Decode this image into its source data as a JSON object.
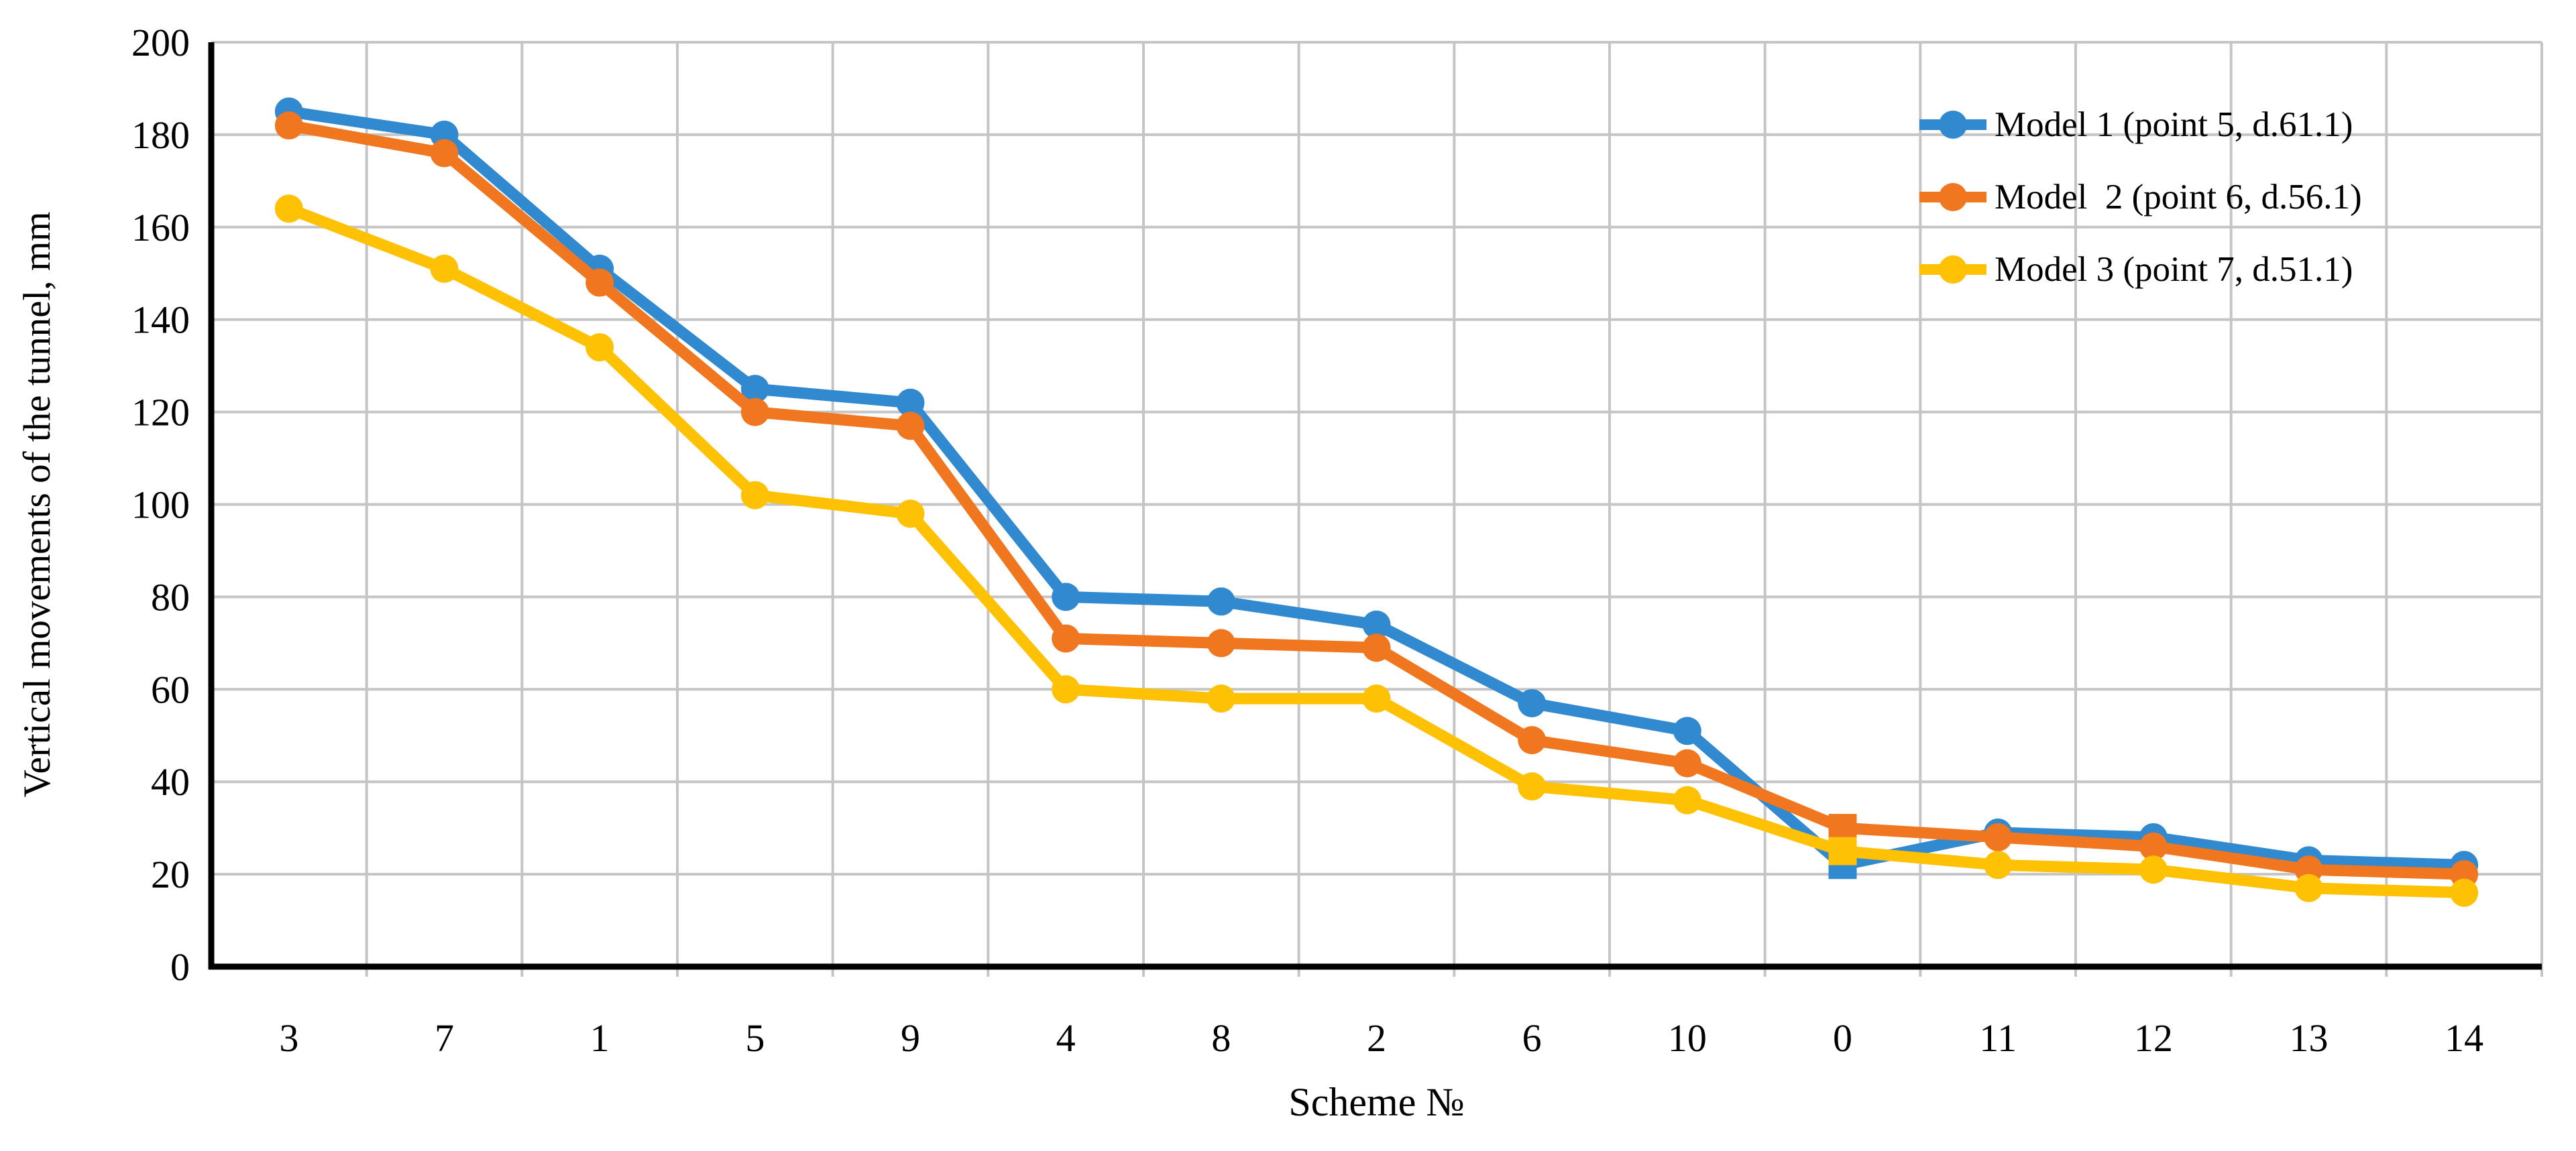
{
  "figure": {
    "background": "#FFFFFF"
  },
  "chart_data": {
    "type": "line",
    "title": "",
    "xlabel": "Scheme №",
    "ylabel": "Vertical movements of the tunnel, mm",
    "categories": [
      "3",
      "7",
      "1",
      "5",
      "9",
      "4",
      "8",
      "2",
      "6",
      "10",
      "0",
      "11",
      "12",
      "13",
      "14"
    ],
    "y_ticks": [
      0,
      20,
      40,
      60,
      80,
      100,
      120,
      140,
      160,
      180,
      200
    ],
    "ylim": [
      0,
      200
    ],
    "grid": true,
    "grid_color": "#C5C5C5",
    "axis_color": "#000000",
    "text_color": "#111111",
    "legend_position": "top-right-inside",
    "square_marker_category": "0",
    "series": [
      {
        "name": "Model 1 (point 5, d.61.1)",
        "color": "#3189CF",
        "marker": "circle",
        "values": [
          185,
          180,
          151,
          125,
          122,
          80,
          79,
          74,
          57,
          51,
          22,
          29,
          28,
          23,
          22
        ]
      },
      {
        "name": "Model  2 (point 6, d.56.1)",
        "color": "#F0761F",
        "marker": "circle",
        "values": [
          182,
          176,
          148,
          120,
          117,
          71,
          70,
          69,
          49,
          44,
          30,
          28,
          26,
          21,
          20
        ]
      },
      {
        "name": "Model 3 (point 7, d.51.1)",
        "color": "#FFC103",
        "marker": "circle",
        "values": [
          164,
          151,
          134,
          102,
          98,
          60,
          58,
          58,
          39,
          36,
          25,
          22,
          21,
          17,
          16
        ]
      }
    ]
  }
}
